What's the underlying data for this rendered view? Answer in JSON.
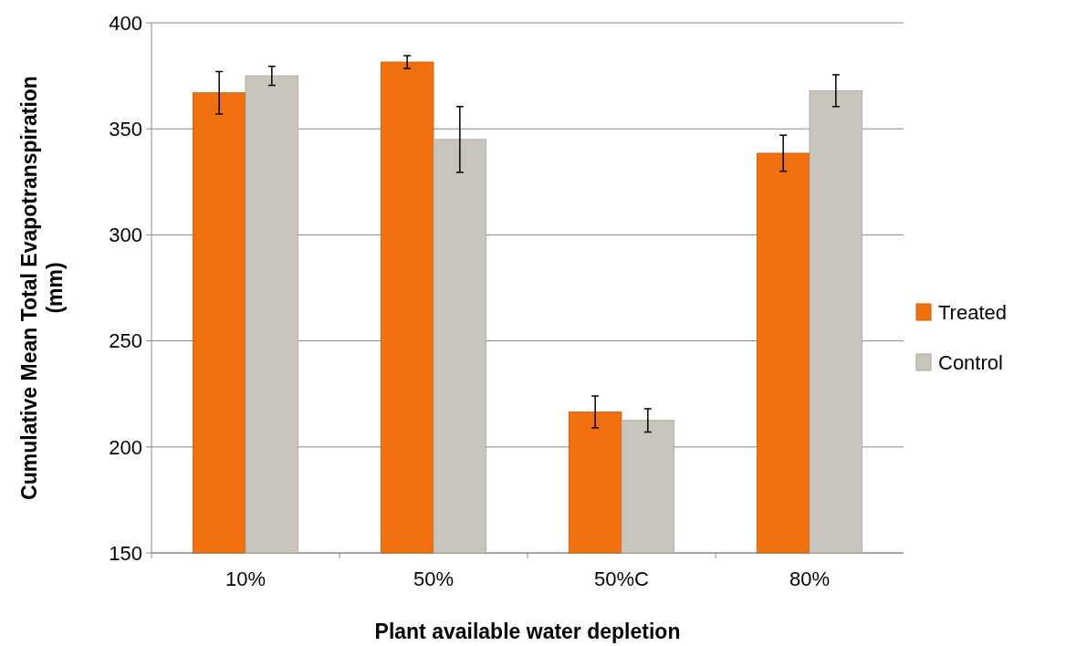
{
  "chart_data": {
    "type": "bar",
    "xlabel": "Plant available water depletion",
    "ylabel": "Cumulative Mean Total Evapotranspiration (mm)",
    "categories": [
      "10%",
      "50%",
      "50%C",
      "80%"
    ],
    "series": [
      {
        "name": "Treated",
        "color": "#f07010",
        "values": [
          367,
          381.5,
          216.5,
          338.5
        ],
        "errors": [
          10,
          3,
          7.5,
          8.5
        ]
      },
      {
        "name": "Control",
        "color": "#c9c5bd",
        "values": [
          375,
          345,
          212.5,
          368
        ],
        "errors": [
          4.5,
          15.5,
          5.5,
          7.5
        ]
      }
    ],
    "ylim": [
      150,
      400
    ],
    "yticks": [
      150,
      200,
      250,
      300,
      350,
      400
    ],
    "grid": "y",
    "legend": "right"
  }
}
